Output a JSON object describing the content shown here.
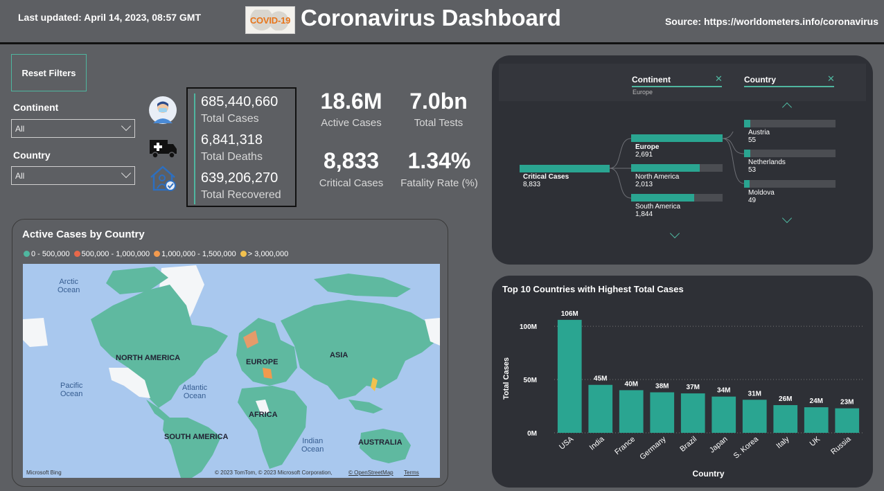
{
  "header": {
    "last_updated": "Last updated: April 14, 2023, 08:57 GMT",
    "logo_text": "COVID-19",
    "title": "Coronavirus Dashboard",
    "source": "Source: https://worldometers.info/coronavirus"
  },
  "filters": {
    "reset_label": "Reset Filters",
    "continent_label": "Continent",
    "continent_value": "All",
    "country_label": "Country",
    "country_value": "All"
  },
  "icons": [
    "doctor-mask-icon",
    "ambulance-icon",
    "home-recovered-icon"
  ],
  "totals": {
    "cases_value": "685,440,660",
    "cases_label": "Total Cases",
    "deaths_value": "6,841,318",
    "deaths_label": "Total Deaths",
    "recovered_value": "639,206,270",
    "recovered_label": "Total Recovered"
  },
  "kpis": {
    "active_value": "18.6M",
    "active_label": "Active Cases",
    "tests_value": "7.0bn",
    "tests_label": "Total Tests",
    "critical_value": "8,833",
    "critical_label": "Critical Cases",
    "fatality_value": "1.34%",
    "fatality_label": "Fatality Rate (%)"
  },
  "map_card": {
    "title": "Active Cases by Country",
    "legend": [
      {
        "label": "0 - 500,000",
        "color": "#4fb7a0"
      },
      {
        "label": "500,000 - 1,000,000",
        "color": "#e8684a"
      },
      {
        "label": "1,000,000 - 1,500,000",
        "color": "#f29a4e"
      },
      {
        "label": "> 3,000,000",
        "color": "#f2c14e"
      }
    ],
    "ocean_labels": {
      "arctic": "Arctic\nOcean",
      "pacific": "Pacific\nOcean",
      "atlantic": "Atlantic\nOcean",
      "indian": "Indian\nOcean"
    },
    "continent_labels": {
      "north_america": "NORTH AMERICA",
      "europe": "EUROPE",
      "asia": "ASIA",
      "africa": "AFRICA",
      "south_america": "SOUTH AMERICA",
      "australia": "AUSTRALIA"
    },
    "bing": "Microsoft Bing",
    "copyright": "© 2023 TomTom, © 2023 Microsoft Corporation,",
    "osm_link": "© OpenStreetMap",
    "terms_link": "Terms"
  },
  "decomp": {
    "continent_header": "Continent",
    "continent_filter": "Europe",
    "country_header": "Country",
    "root": {
      "name": "Critical Cases",
      "value": "8,833"
    },
    "level1": [
      {
        "name": "Europe",
        "value": "2,691",
        "fraction": 1.0
      },
      {
        "name": "North America",
        "value": "2,013",
        "fraction": 0.75
      },
      {
        "name": "South America",
        "value": "1,844",
        "fraction": 0.69
      }
    ],
    "level2": [
      {
        "name": "Austria",
        "value": "55",
        "fraction": 0.07
      },
      {
        "name": "Netherlands",
        "value": "53",
        "fraction": 0.068
      },
      {
        "name": "Moldova",
        "value": "49",
        "fraction": 0.063
      }
    ]
  },
  "bar_card": {
    "title": "Top 10 Countries with Highest Total Cases"
  },
  "chart_data": {
    "type": "bar",
    "title": "Top 10 Countries with Highest Total Cases",
    "xlabel": "Country",
    "ylabel": "Total Cases",
    "categories": [
      "USA",
      "India",
      "France",
      "Germany",
      "Brazil",
      "Japan",
      "S. Korea",
      "Italy",
      "UK",
      "Russia"
    ],
    "values": [
      106,
      45,
      40,
      38,
      37,
      34,
      31,
      26,
      24,
      23
    ],
    "data_labels": [
      "106M",
      "45M",
      "40M",
      "38M",
      "37M",
      "34M",
      "31M",
      "26M",
      "24M",
      "23M"
    ],
    "yticks": [
      0,
      50,
      100
    ],
    "ytick_labels": [
      "0M",
      "50M",
      "100M"
    ],
    "ylim": [
      0,
      115
    ],
    "grid": true,
    "bar_color": "#2aa591"
  }
}
